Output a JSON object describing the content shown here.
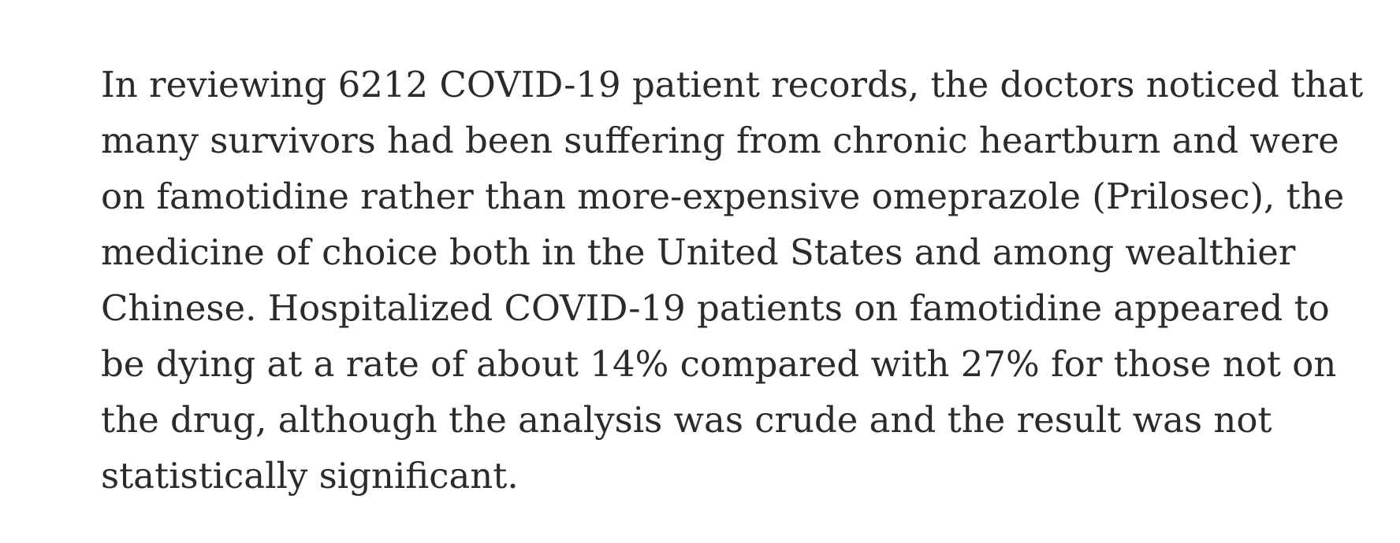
{
  "article": {
    "paragraph_lines": [
      "In reviewing 6212 COVID-19 patient records, the doctors noticed that",
      "many survivors had been suffering from chronic heartburn and were",
      "on famotidine rather than more-expensive omeprazole (Prilosec), the",
      "medicine of choice both in the United States and among wealthier",
      "Chinese. Hospitalized COVID-19 patients on famotidine appeared to",
      "be dying at a rate of about 14% compared with 27% for those not on",
      "the drug, although the analysis was crude and the result was not",
      "statistically significant."
    ]
  }
}
